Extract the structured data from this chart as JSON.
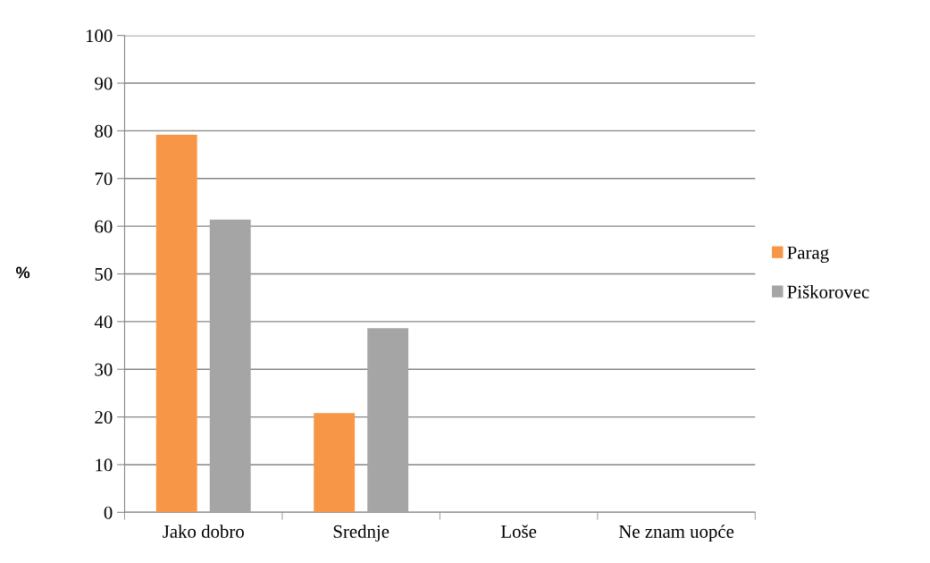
{
  "chart_data": {
    "type": "bar",
    "ylabel": "%",
    "categories": [
      "Jako dobro",
      "Srednje",
      "Loše",
      "Ne znam uopće"
    ],
    "series": [
      {
        "name": "Parag",
        "color": "#f79646",
        "values": [
          79.2,
          20.8,
          0,
          0
        ]
      },
      {
        "name": "Piškorovec",
        "color": "#a5a5a5",
        "values": [
          61.4,
          38.6,
          0,
          0
        ]
      }
    ],
    "ylim": [
      0,
      100
    ],
    "yticks": [
      0,
      10,
      20,
      30,
      40,
      50,
      60,
      70,
      80,
      90,
      100
    ],
    "grid": "y",
    "legend": "right"
  }
}
